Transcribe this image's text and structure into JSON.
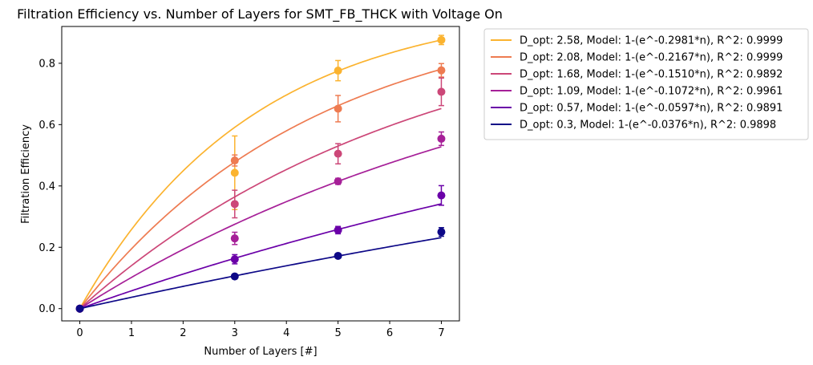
{
  "chart_data": {
    "type": "line",
    "title": "Filtration Efficiency vs. Number of Layers for SMT_FB_THCK with Voltage On",
    "xlabel": "Number of Layers [#]",
    "ylabel": "Filtration Efficiency",
    "xlim": [
      -0.35,
      7.35
    ],
    "ylim": [
      -0.04,
      0.92
    ],
    "xticks": [
      0,
      1,
      2,
      3,
      4,
      5,
      6,
      7
    ],
    "yticks": [
      0.0,
      0.2,
      0.4,
      0.6,
      0.8
    ],
    "ytick_labels": [
      "0.0",
      "0.2",
      "0.4",
      "0.6",
      "0.8"
    ],
    "grid": false,
    "legend_position": "outside upper right",
    "series": [
      {
        "name": "D_opt: 2.58, Model: 1-(e^-0.2981*n), R^2: 0.9999",
        "k": 0.2981,
        "color": "#fbb32f",
        "points": [
          {
            "x": 0,
            "y": 0.0,
            "err": 0.0
          },
          {
            "x": 3,
            "y": 0.443,
            "err": 0.12
          },
          {
            "x": 5,
            "y": 0.776,
            "err": 0.033
          },
          {
            "x": 7,
            "y": 0.876,
            "err": 0.015
          }
        ]
      },
      {
        "name": "D_opt: 2.08, Model: 1-(e^-0.2167*n), R^2: 0.9999",
        "k": 0.2167,
        "color": "#ee7b51",
        "points": [
          {
            "x": 0,
            "y": 0.0,
            "err": 0.0
          },
          {
            "x": 3,
            "y": 0.483,
            "err": 0.018
          },
          {
            "x": 5,
            "y": 0.652,
            "err": 0.043
          },
          {
            "x": 7,
            "y": 0.777,
            "err": 0.022
          }
        ]
      },
      {
        "name": "D_opt: 1.68, Model: 1-(e^-0.1510*n), R^2: 0.9892",
        "k": 0.151,
        "color": "#cc4778",
        "points": [
          {
            "x": 0,
            "y": 0.0,
            "err": 0.0
          },
          {
            "x": 3,
            "y": 0.341,
            "err": 0.045
          },
          {
            "x": 5,
            "y": 0.505,
            "err": 0.033
          },
          {
            "x": 7,
            "y": 0.707,
            "err": 0.045
          }
        ]
      },
      {
        "name": "D_opt: 1.09, Model: 1-(e^-0.1072*n), R^2: 0.9961",
        "k": 0.1072,
        "color": "#a62098",
        "points": [
          {
            "x": 0,
            "y": 0.0,
            "err": 0.0
          },
          {
            "x": 3,
            "y": 0.229,
            "err": 0.02
          },
          {
            "x": 5,
            "y": 0.415,
            "err": 0.01
          },
          {
            "x": 7,
            "y": 0.554,
            "err": 0.022
          }
        ]
      },
      {
        "name": "D_opt: 0.57, Model: 1-(e^-0.0597*n), R^2: 0.9891",
        "k": 0.0597,
        "color": "#6a00a8",
        "points": [
          {
            "x": 0,
            "y": 0.0,
            "err": 0.0
          },
          {
            "x": 3,
            "y": 0.161,
            "err": 0.015
          },
          {
            "x": 5,
            "y": 0.256,
            "err": 0.012
          },
          {
            "x": 7,
            "y": 0.369,
            "err": 0.032
          }
        ]
      },
      {
        "name": "D_opt: 0.3, Model: 1-(e^-0.0376*n), R^2: 0.9898",
        "k": 0.0376,
        "color": "#0d0887",
        "points": [
          {
            "x": 0,
            "y": 0.0,
            "err": 0.0
          },
          {
            "x": 3,
            "y": 0.105,
            "err": 0.004
          },
          {
            "x": 5,
            "y": 0.172,
            "err": 0.006
          },
          {
            "x": 7,
            "y": 0.25,
            "err": 0.014
          }
        ]
      }
    ]
  }
}
